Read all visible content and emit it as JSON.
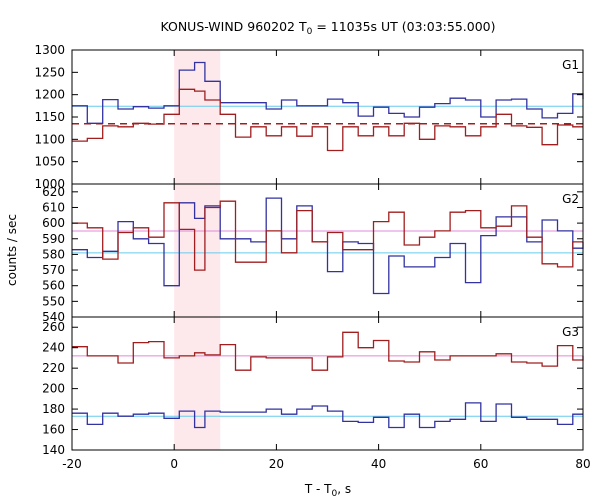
{
  "chart_data": {
    "type": "line",
    "title": "KONUS-WIND 960202 T",
    "title_sub": "0",
    "title_rest": " = 11035s UT (03:03:55.000)",
    "xlabel": "T - T",
    "xlabel_sub": "0",
    "xlabel_rest": ", s",
    "ylabel": "counts / sec",
    "xlim": [
      -20,
      80
    ],
    "xticks": [
      "-20",
      "0",
      "20",
      "40",
      "60",
      "80"
    ],
    "shaded_interval": [
      0,
      9
    ],
    "colors": {
      "blue": "#3232a0",
      "red": "#a01e1e",
      "cyan": "#66ccee",
      "pink": "#e088d8",
      "shade": "#fde8ec"
    },
    "step_edges": [
      -20,
      -17,
      -14,
      -11,
      -8,
      -5,
      -2,
      1,
      4,
      6,
      9,
      12,
      15,
      18,
      21,
      24,
      27,
      30,
      33,
      36,
      39,
      42,
      45,
      48,
      51,
      54,
      57,
      60,
      63,
      66,
      69,
      72,
      75,
      78,
      80
    ],
    "panels": [
      {
        "name": "G1",
        "ylim": [
          1000,
          1300
        ],
        "yticks": [
          "1000",
          "1050",
          "1100",
          "1150",
          "1200",
          "1250",
          "1300"
        ],
        "series": [
          {
            "color": "blue",
            "values": [
              1175,
              1136,
              1189,
              1168,
              1173,
              1170,
              1175,
              1255,
              1272,
              1230,
              1182,
              1182,
              1182,
              1168,
              1188,
              1175,
              1175,
              1190,
              1182,
              1152,
              1172,
              1158,
              1150,
              1172,
              1180,
              1192,
              1188,
              1150,
              1188,
              1190,
              1168,
              1148,
              1158,
              1202,
              1190
            ]
          },
          {
            "color": "red",
            "values": [
              1096,
              1102,
              1130,
              1128,
              1136,
              1134,
              1156,
              1212,
              1208,
              1188,
              1156,
              1105,
              1128,
              1108,
              1128,
              1107,
              1128,
              1075,
              1128,
              1108,
              1128,
              1108,
              1136,
              1100,
              1130,
              1128,
              1108,
              1128,
              1156,
              1130,
              1127,
              1088,
              1132,
              1128,
              1128
            ]
          }
        ],
        "dashed_background": 1135,
        "background_levels": [
          {
            "color": "cyan",
            "value": 1174
          }
        ]
      },
      {
        "name": "G2",
        "ylim": [
          540,
          625
        ],
        "yticks": [
          "540",
          "550",
          "560",
          "570",
          "580",
          "590",
          "600",
          "610",
          "620"
        ],
        "series": [
          {
            "color": "blue",
            "values": [
              583,
              578,
              582,
              601,
              590,
              587,
              560,
              613,
              603,
              611,
              590,
              590,
              588,
              616,
              590,
              611,
              588,
              569,
              588,
              587,
              555,
              579,
              572,
              572,
              578,
              587,
              562,
              592,
              604,
              604,
              588,
              602,
              595,
              584,
              588
            ]
          },
          {
            "color": "red",
            "values": [
              600,
              597,
              577,
              594,
              597,
              591,
              613,
              596,
              570,
              610,
              614,
              575,
              575,
              595,
              581,
              608,
              588,
              594,
              583,
              583,
              601,
              607,
              586,
              591,
              595,
              607,
              608,
              597,
              598,
              611,
              591,
              574,
              572,
              588,
              588
            ]
          }
        ],
        "background_levels": [
          {
            "color": "cyan",
            "value": 581
          },
          {
            "color": "pink",
            "value": 595
          }
        ]
      },
      {
        "name": "G3",
        "ylim": [
          140,
          270
        ],
        "yticks": [
          "140",
          "160",
          "180",
          "200",
          "220",
          "240",
          "260"
        ],
        "series": [
          {
            "color": "blue",
            "values": [
              176,
              165,
              176,
              173,
              175,
              176,
              171,
              178,
              162,
              178,
              177,
              177,
              177,
              180,
              175,
              180,
              183,
              178,
              168,
              167,
              172,
              162,
              175,
              162,
              168,
              170,
              186,
              168,
              185,
              172,
              170,
              170,
              165,
              175,
              175
            ]
          },
          {
            "color": "red",
            "values": [
              241,
              232,
              232,
              225,
              245,
              246,
              230,
              232,
              235,
              233,
              243,
              218,
              231,
              230,
              230,
              230,
              218,
              231,
              255,
              240,
              247,
              227,
              226,
              236,
              228,
              232,
              232,
              232,
              234,
              226,
              225,
              222,
              242,
              228,
              232
            ]
          }
        ],
        "background_levels": [
          {
            "color": "pink",
            "value": 232
          },
          {
            "color": "cyan",
            "value": 173
          }
        ]
      }
    ]
  }
}
